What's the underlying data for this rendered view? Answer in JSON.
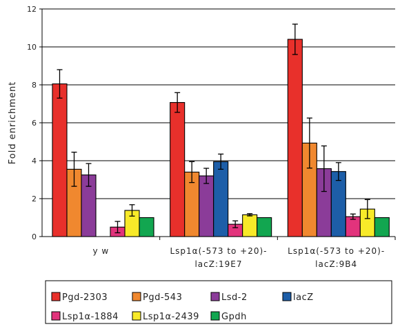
{
  "chart_data": {
    "type": "bar",
    "title": "",
    "xlabel": "",
    "ylabel": "Fold enrichment",
    "ylim": [
      0,
      12
    ],
    "yticks": [
      "0",
      "2",
      "4",
      "6",
      "8",
      "10",
      "12"
    ],
    "grid": true,
    "legend_position": "bottom",
    "categories": [
      [
        "y w"
      ],
      [
        "Lsp1α(-573 to +20)-",
        "lacZ:19E7"
      ],
      [
        "Lsp1α(-573 to +20)-",
        "lacZ:9B4"
      ]
    ],
    "series": [
      {
        "name": "Pgd-2303",
        "color": "#e8302b",
        "values": [
          8.05,
          7.07,
          10.4
        ],
        "errors": [
          0.75,
          0.52,
          0.8
        ]
      },
      {
        "name": "Pgd-543",
        "color": "#f0882f",
        "values": [
          3.55,
          3.4,
          4.93
        ],
        "errors": [
          0.9,
          0.55,
          1.32
        ]
      },
      {
        "name": "Lsd-2",
        "color": "#8b3c99",
        "values": [
          3.25,
          3.2,
          3.58
        ],
        "errors": [
          0.6,
          0.4,
          1.2
        ]
      },
      {
        "name": "lacZ",
        "color": "#1d5ea8",
        "values": [
          null,
          3.95,
          3.43
        ],
        "errors": [
          null,
          0.4,
          0.47
        ]
      },
      {
        "name": "Lsp1α-1884",
        "color": "#e2337c",
        "values": [
          0.5,
          0.65,
          1.05
        ],
        "errors": [
          0.3,
          0.18,
          0.14
        ]
      },
      {
        "name": "Lsp1α-2439",
        "color": "#f8ea29",
        "values": [
          1.38,
          1.15,
          1.45
        ],
        "errors": [
          0.3,
          0.06,
          0.5
        ]
      },
      {
        "name": "Gpdh",
        "color": "#12a650",
        "values": [
          1.0,
          1.0,
          1.0
        ],
        "errors": [
          0,
          0,
          0
        ]
      }
    ]
  }
}
